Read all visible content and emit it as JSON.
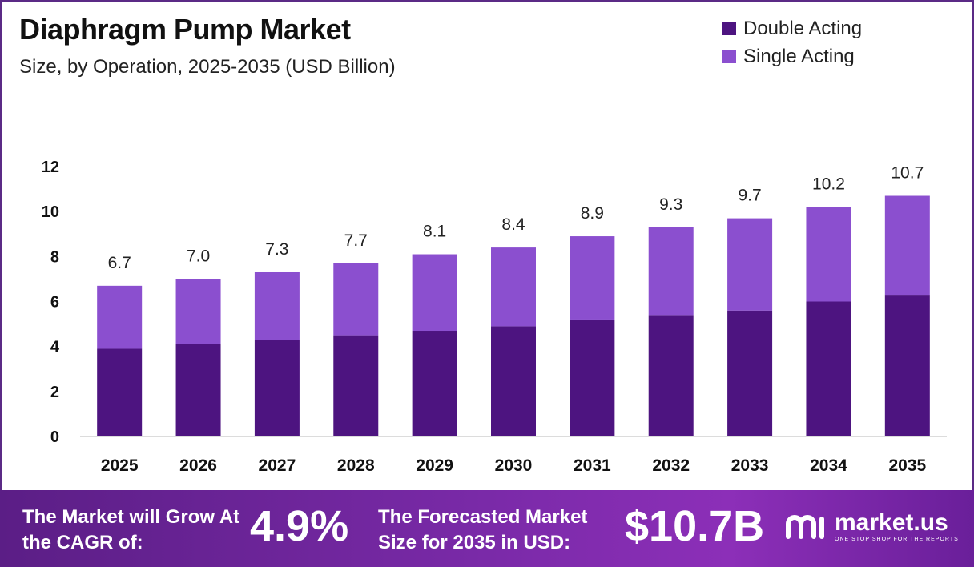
{
  "header": {
    "title": "Diaphragm Pump Market",
    "subtitle": "Size, by Operation, 2025-2035 (USD Billion)"
  },
  "colors": {
    "double_acting": "#4d1480",
    "single_acting": "#8b4fcf",
    "brand_purple": "#5b2a86"
  },
  "chart_data": {
    "type": "bar",
    "stacked": true,
    "categories": [
      "2025",
      "2026",
      "2027",
      "2028",
      "2029",
      "2030",
      "2031",
      "2032",
      "2033",
      "2034",
      "2035"
    ],
    "series": [
      {
        "name": "Double Acting",
        "values": [
          3.9,
          4.1,
          4.3,
          4.5,
          4.7,
          4.9,
          5.2,
          5.4,
          5.6,
          6.0,
          6.3
        ]
      },
      {
        "name": "Single Acting",
        "values": [
          2.8,
          2.9,
          3.0,
          3.2,
          3.4,
          3.5,
          3.7,
          3.9,
          4.1,
          4.2,
          4.4
        ]
      }
    ],
    "totals": [
      "6.7",
      "7.0",
      "7.3",
      "7.7",
      "8.1",
      "8.4",
      "8.9",
      "9.3",
      "9.7",
      "10.2",
      "10.7"
    ],
    "title": "Diaphragm Pump Market",
    "subtitle": "Size, by Operation, 2025-2035 (USD Billion)",
    "ylim": [
      0,
      12
    ],
    "yticks": [
      "0",
      "2",
      "4",
      "6",
      "8",
      "10",
      "12"
    ],
    "grid": false,
    "legend": "top-right"
  },
  "footer": {
    "cagr_label": "The Market will Grow At the CAGR of:",
    "cagr_value": "4.9%",
    "forecast_label": "The Forecasted Market Size for 2035 in USD:",
    "forecast_value": "$10.7B",
    "logo_text": "market.us",
    "logo_tagline": "ONE STOP SHOP FOR THE REPORTS",
    "logo_icon": "market-us-logo-icon"
  }
}
